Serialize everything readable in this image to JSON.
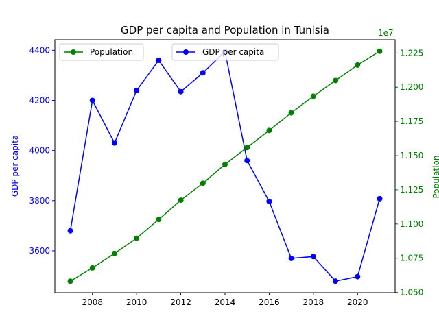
{
  "chart_data": {
    "type": "line",
    "title": "GDP per capita and Population in Tunisia",
    "x": [
      2007,
      2008,
      2009,
      2010,
      2011,
      2012,
      2013,
      2014,
      2015,
      2016,
      2017,
      2018,
      2019,
      2020,
      2021
    ],
    "xlim": [
      2006.3,
      2021.7
    ],
    "xticks": [
      "2008",
      "2010",
      "2012",
      "2014",
      "2016",
      "2018",
      "2020"
    ],
    "series": [
      {
        "name": "GDP per capita",
        "axis": "left",
        "color": "#0000ff",
        "marker": "circle",
        "values": [
          3680,
          4200,
          4030,
          4240,
          4360,
          4235,
          4310,
          4395,
          3960,
          3797,
          3570,
          3577,
          3479,
          3497,
          3808
        ]
      },
      {
        "name": "Population",
        "axis": "right",
        "color": "#008000",
        "marker": "circle",
        "values": [
          10582000,
          10679000,
          10785000,
          10896000,
          11033000,
          11174000,
          11298000,
          11436000,
          11559000,
          11684000,
          11813000,
          11934000,
          12049000,
          12162000,
          12263000
        ]
      }
    ],
    "left_axis": {
      "label": "GDP per capita",
      "color": "#0000ff",
      "ylim": [
        3433,
        4442
      ],
      "ticks": [
        "3600",
        "3800",
        "4000",
        "4200",
        "4400"
      ]
    },
    "right_axis": {
      "label": "Population",
      "color": "#008000",
      "ylim": [
        10498000,
        12347000
      ],
      "ticks": [
        "1.050",
        "1.075",
        "1.100",
        "1.125",
        "1.150",
        "1.175",
        "1.200",
        "1.225"
      ],
      "offset_text": "1e7"
    },
    "legends": [
      {
        "placement": "upper-left",
        "entries": [
          "Population"
        ]
      },
      {
        "placement": "upper-center",
        "entries": [
          "GDP per capita"
        ]
      }
    ],
    "grid": false
  }
}
